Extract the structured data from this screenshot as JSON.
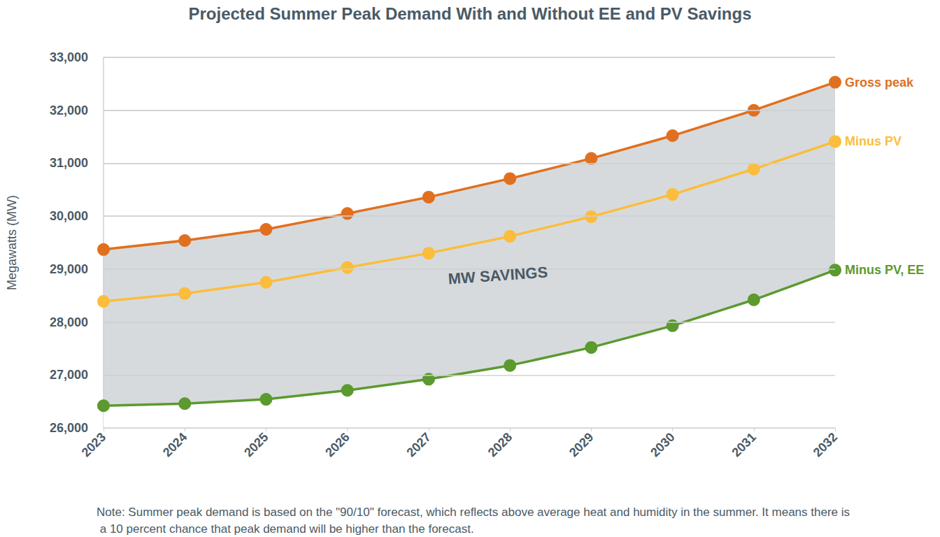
{
  "chart_data": {
    "type": "line",
    "title": "Projected Summer Peak Demand With and Without EE and PV Savings",
    "y_label": "Megawatts (MW)",
    "annotations": [
      "MW SAVINGS"
    ],
    "note": "Note: Summer peak demand is based on the \"90/10\" forecast, which reflects above average heat and humidity in the summer. It means there is a 10 percent chance that peak demand will be higher than the forecast.",
    "categories": [
      "2023",
      "2024",
      "2025",
      "2026",
      "2027",
      "2028",
      "2029",
      "2030",
      "2031",
      "2032"
    ],
    "series": [
      {
        "name": "Gross peak",
        "color": "#e0701f",
        "marker": "circle",
        "values": [
          29370,
          29540,
          29750,
          30050,
          30360,
          30710,
          31090,
          31520,
          32000,
          32530
        ]
      },
      {
        "name": "Minus PV",
        "color": "#fbbd3b",
        "marker": "circle",
        "values": [
          28390,
          28540,
          28750,
          29030,
          29300,
          29620,
          29990,
          30410,
          30890,
          31410
        ]
      },
      {
        "name": "Minus PV, EE",
        "color": "#5b9a2f",
        "marker": "circle",
        "values": [
          26420,
          26460,
          26540,
          26710,
          26920,
          27180,
          27520,
          27930,
          28420,
          28980
        ]
      }
    ],
    "ylim": [
      26000,
      33000
    ],
    "yticks": [
      {
        "value": 26000,
        "label": "26,000"
      },
      {
        "value": 27000,
        "label": "27,000"
      },
      {
        "value": 28000,
        "label": "28,000"
      },
      {
        "value": 29000,
        "label": "29,000"
      },
      {
        "value": 30000,
        "label": "30,000"
      },
      {
        "value": 31000,
        "label": "31,000"
      },
      {
        "value": 32000,
        "label": "32,000"
      },
      {
        "value": 33000,
        "label": "33,000"
      }
    ],
    "grid": true,
    "legend": "none"
  }
}
